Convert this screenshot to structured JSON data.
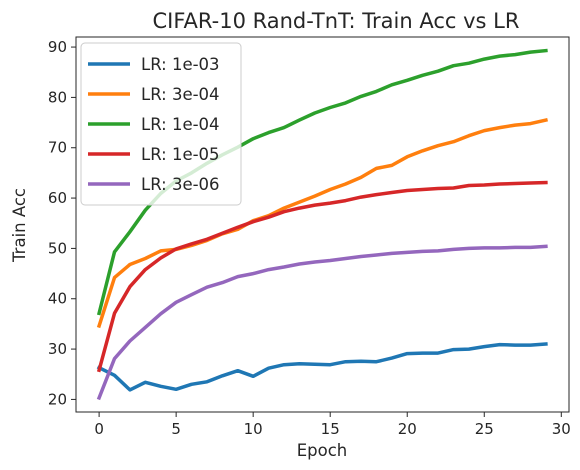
{
  "chart_data": {
    "type": "line",
    "title": "CIFAR-10 Rand-TnT: Train Acc vs LR",
    "xlabel": "Epoch",
    "ylabel": "Train Acc",
    "xlim": [
      -1.5,
      30.5
    ],
    "ylim": [
      17.5,
      92
    ],
    "xticks": [
      0,
      5,
      10,
      15,
      20,
      25,
      30
    ],
    "yticks": [
      20,
      30,
      40,
      50,
      60,
      70,
      80,
      90
    ],
    "grid": false,
    "legend_position": "upper-left",
    "x": [
      0,
      1,
      2,
      3,
      4,
      5,
      6,
      7,
      8,
      9,
      10,
      11,
      12,
      13,
      14,
      15,
      16,
      17,
      18,
      19,
      20,
      21,
      22,
      23,
      24,
      25,
      26,
      27,
      28,
      29
    ],
    "series": [
      {
        "name": "LR: 1e-03",
        "color": "#1f77b4",
        "values": [
          26.3,
          24.8,
          21.9,
          23.4,
          22.6,
          22.0,
          23.0,
          23.5,
          24.7,
          25.7,
          24.6,
          26.2,
          26.9,
          27.1,
          27.0,
          26.9,
          27.5,
          27.6,
          27.5,
          28.2,
          29.1,
          29.2,
          29.2,
          29.9,
          30.0,
          30.5,
          30.9,
          30.8,
          30.8,
          31.0
        ]
      },
      {
        "name": "LR: 3e-04",
        "color": "#ff7f0e",
        "values": [
          34.6,
          44.2,
          46.8,
          48.0,
          49.5,
          49.8,
          50.6,
          51.6,
          52.9,
          53.8,
          55.5,
          56.5,
          58.0,
          59.2,
          60.4,
          61.7,
          62.8,
          64.1,
          65.9,
          66.5,
          68.2,
          69.4,
          70.4,
          71.2,
          72.4,
          73.4,
          74.0,
          74.5,
          74.8,
          75.5
        ]
      },
      {
        "name": "LR: 1e-04",
        "color": "#2ca02c",
        "values": [
          37.1,
          49.3,
          53.3,
          57.6,
          60.9,
          63.4,
          65.0,
          66.9,
          68.6,
          70.1,
          71.8,
          73.0,
          74.0,
          75.5,
          76.9,
          78.0,
          78.9,
          80.2,
          81.2,
          82.5,
          83.4,
          84.4,
          85.2,
          86.3,
          86.8,
          87.6,
          88.2,
          88.5,
          89.0,
          89.3
        ]
      },
      {
        "name": "LR: 1e-05",
        "color": "#d62728",
        "values": [
          25.8,
          37.1,
          42.4,
          45.8,
          48.1,
          49.9,
          50.9,
          51.8,
          53.0,
          54.2,
          55.3,
          56.2,
          57.3,
          58.0,
          58.6,
          59.0,
          59.5,
          60.2,
          60.7,
          61.1,
          61.5,
          61.7,
          61.9,
          62.0,
          62.5,
          62.6,
          62.8,
          62.9,
          63.0,
          63.1
        ]
      },
      {
        "name": "LR: 3e-06",
        "color": "#9467bd",
        "values": [
          20.3,
          28.1,
          31.6,
          34.3,
          37.0,
          39.3,
          40.8,
          42.3,
          43.2,
          44.4,
          45.0,
          45.8,
          46.3,
          46.9,
          47.3,
          47.6,
          48.0,
          48.4,
          48.7,
          49.0,
          49.2,
          49.4,
          49.5,
          49.8,
          50.0,
          50.1,
          50.1,
          50.2,
          50.2,
          50.4
        ]
      }
    ]
  }
}
